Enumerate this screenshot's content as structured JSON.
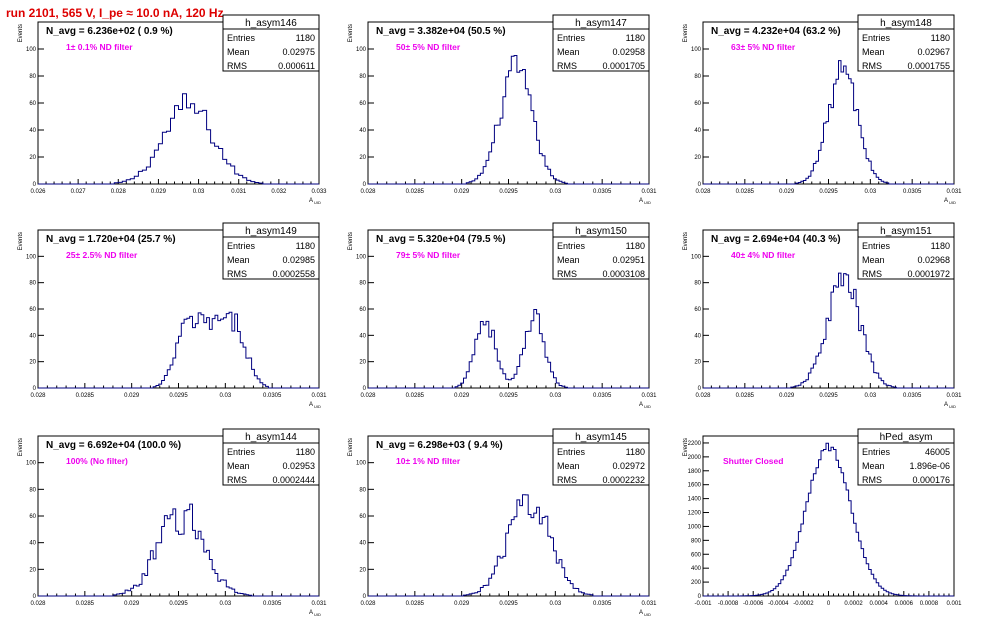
{
  "run_title": "run 2101,   565 V, I_pe ≈ 10.0 nA, 120 Hz",
  "colors": {
    "run_title": "#dd0000",
    "annotation": "#ee00ee",
    "histogram": "#000080",
    "frame": "#000000"
  },
  "chart_data": [
    {
      "type": "histogram",
      "hist_name": "h_asym146",
      "stats": {
        "entries": "1180",
        "mean": "0.02975",
        "rms": "0.000611"
      },
      "title": "N_avg = 6.236e+02 ( 0.9 %)",
      "annotation": "1± 0.1% ND filter",
      "ylabel": "Events",
      "xlabel": "A",
      "xlabel_sub": "UID",
      "xlim": [
        0.026,
        0.033
      ],
      "ylim": [
        0,
        120
      ],
      "xticks": [
        0.026,
        0.027,
        0.028,
        0.029,
        0.03,
        0.031,
        0.032,
        0.033
      ],
      "xtick_labels": [
        "0.026",
        "0.027",
        "0.028",
        "0.029",
        "0.03",
        "0.031",
        "0.032",
        "0.033"
      ],
      "yticks": [
        0,
        20,
        40,
        60,
        80,
        100
      ],
      "shape": {
        "kind": "gauss",
        "center": 0.02975,
        "sigma": 0.000611,
        "peak": 58,
        "bin_width": 0.0001,
        "noise": 0.18
      }
    },
    {
      "type": "histogram",
      "hist_name": "h_asym147",
      "stats": {
        "entries": "1180",
        "mean": "0.02958",
        "rms": "0.0001705"
      },
      "title": "N_avg = 3.382e+04 (50.5 %)",
      "annotation": "50± 5% ND filter",
      "ylabel": "Events",
      "xlabel": "A",
      "xlabel_sub": "UID",
      "xlim": [
        0.028,
        0.031
      ],
      "ylim": [
        0,
        120
      ],
      "xticks": [
        0.028,
        0.0285,
        0.029,
        0.0295,
        0.03,
        0.0305,
        0.031
      ],
      "xtick_labels": [
        "0.028",
        "0.0285",
        "0.029",
        "0.0295",
        "0.03",
        "0.0305",
        "0.031"
      ],
      "yticks": [
        0,
        20,
        40,
        60,
        80,
        100
      ],
      "shape": {
        "kind": "gauss",
        "center": 0.02958,
        "sigma": 0.0001705,
        "peak": 85,
        "bin_width": 3e-05,
        "noise": 0.14
      }
    },
    {
      "type": "histogram",
      "hist_name": "h_asym148",
      "stats": {
        "entries": "1180",
        "mean": "0.02967",
        "rms": "0.0001755"
      },
      "title": "N_avg = 4.232e+04 (63.2 %)",
      "annotation": "63± 5% ND filter",
      "ylabel": "Events",
      "xlabel": "A",
      "xlabel_sub": "UID",
      "xlim": [
        0.028,
        0.031
      ],
      "ylim": [
        0,
        120
      ],
      "xticks": [
        0.028,
        0.0285,
        0.029,
        0.0295,
        0.03,
        0.0305,
        0.031
      ],
      "xtick_labels": [
        "0.028",
        "0.0285",
        "0.029",
        "0.0295",
        "0.03",
        "0.0305",
        "0.031"
      ],
      "yticks": [
        0,
        20,
        40,
        60,
        80,
        100
      ],
      "shape": {
        "kind": "gauss",
        "center": 0.02967,
        "sigma": 0.0001755,
        "peak": 84,
        "bin_width": 3e-05,
        "noise": 0.14
      }
    },
    {
      "type": "histogram",
      "hist_name": "h_asym149",
      "stats": {
        "entries": "1180",
        "mean": "0.02985",
        "rms": "0.0002558"
      },
      "title": "N_avg = 1.720e+04 (25.7 %)",
      "annotation": "25± 2.5% ND filter",
      "ylabel": "Events",
      "xlabel": "A",
      "xlabel_sub": "UID",
      "xlim": [
        0.028,
        0.031
      ],
      "ylim": [
        0,
        120
      ],
      "xticks": [
        0.028,
        0.0285,
        0.029,
        0.0295,
        0.03,
        0.0305,
        0.031
      ],
      "xtick_labels": [
        "0.028",
        "0.0285",
        "0.029",
        "0.0295",
        "0.03",
        "0.0305",
        "0.031"
      ],
      "yticks": [
        0,
        20,
        40,
        60,
        80,
        100
      ],
      "shape": {
        "kind": "flat",
        "center": 0.02985,
        "sigma": 0.0002558,
        "peak": 50,
        "bin_width": 3e-05,
        "noise": 0.16
      }
    },
    {
      "type": "histogram",
      "hist_name": "h_asym150",
      "stats": {
        "entries": "1180",
        "mean": "0.02951",
        "rms": "0.0003108"
      },
      "title": "N_avg = 5.320e+04 (79.5 %)",
      "annotation": "79± 5% ND filter",
      "ylabel": "Events",
      "xlabel": "A",
      "xlabel_sub": "UID",
      "xlim": [
        0.028,
        0.031
      ],
      "ylim": [
        0,
        120
      ],
      "xticks": [
        0.028,
        0.0285,
        0.029,
        0.0295,
        0.03,
        0.0305,
        0.031
      ],
      "xtick_labels": [
        "0.028",
        "0.0285",
        "0.029",
        "0.0295",
        "0.03",
        "0.0305",
        "0.031"
      ],
      "yticks": [
        0,
        20,
        40,
        60,
        80,
        100
      ],
      "shape": {
        "kind": "double",
        "center": 0.02951,
        "c1": 0.02925,
        "c2": 0.02978,
        "sigma": 0.00011,
        "peak": 52,
        "bin_width": 3e-05,
        "noise": 0.16
      }
    },
    {
      "type": "histogram",
      "hist_name": "h_asym151",
      "stats": {
        "entries": "1180",
        "mean": "0.02968",
        "rms": "0.0001972"
      },
      "title": "N_avg = 2.694e+04 (40.3 %)",
      "annotation": "40± 4% ND filter",
      "ylabel": "Events",
      "xlabel": "A",
      "xlabel_sub": "UID",
      "xlim": [
        0.028,
        0.031
      ],
      "ylim": [
        0,
        120
      ],
      "xticks": [
        0.028,
        0.0285,
        0.029,
        0.0295,
        0.03,
        0.0305,
        0.031
      ],
      "xtick_labels": [
        "0.028",
        "0.0285",
        "0.029",
        "0.0295",
        "0.03",
        "0.0305",
        "0.031"
      ],
      "yticks": [
        0,
        20,
        40,
        60,
        80,
        100
      ],
      "shape": {
        "kind": "gauss",
        "center": 0.02968,
        "sigma": 0.0001972,
        "peak": 82,
        "bin_width": 3e-05,
        "noise": 0.16
      }
    },
    {
      "type": "histogram",
      "hist_name": "h_asym144",
      "stats": {
        "entries": "1180",
        "mean": "0.02953",
        "rms": "0.0002444"
      },
      "title": "N_avg = 6.692e+04 (100.0 %)",
      "annotation": "100% (No filter)",
      "ylabel": "Events",
      "xlabel": "A",
      "xlabel_sub": "UID",
      "xlim": [
        0.028,
        0.031
      ],
      "ylim": [
        0,
        120
      ],
      "xticks": [
        0.028,
        0.0285,
        0.029,
        0.0295,
        0.03,
        0.0305,
        0.031
      ],
      "xtick_labels": [
        "0.028",
        "0.0285",
        "0.029",
        "0.0295",
        "0.03",
        "0.0305",
        "0.031"
      ],
      "yticks": [
        0,
        20,
        40,
        60,
        80,
        100
      ],
      "shape": {
        "kind": "gauss",
        "center": 0.02953,
        "sigma": 0.0002444,
        "peak": 60,
        "bin_width": 3e-05,
        "noise": 0.3
      }
    },
    {
      "type": "histogram",
      "hist_name": "h_asym145",
      "stats": {
        "entries": "1180",
        "mean": "0.02972",
        "rms": "0.0002232"
      },
      "title": "N_avg = 6.298e+03 ( 9.4 %)",
      "annotation": "10± 1% ND filter",
      "ylabel": "Events",
      "xlabel": "A",
      "xlabel_sub": "UID",
      "xlim": [
        0.028,
        0.031
      ],
      "ylim": [
        0,
        120
      ],
      "xticks": [
        0.028,
        0.0285,
        0.029,
        0.0295,
        0.03,
        0.0305,
        0.031
      ],
      "xtick_labels": [
        "0.028",
        "0.0285",
        "0.029",
        "0.0295",
        "0.03",
        "0.0305",
        "0.031"
      ],
      "yticks": [
        0,
        20,
        40,
        60,
        80,
        100
      ],
      "shape": {
        "kind": "gauss",
        "center": 0.02972,
        "sigma": 0.0002232,
        "peak": 72,
        "bin_width": 3e-05,
        "noise": 0.2
      }
    },
    {
      "type": "histogram",
      "hist_name": "hPed_asym",
      "stats": {
        "entries": "46005",
        "mean": "1.896e-06",
        "rms": "0.000176"
      },
      "title": "",
      "annotation": "Shutter Closed",
      "ylabel": "Events",
      "xlabel": "",
      "xlabel_sub": "",
      "xlim": [
        -0.001,
        0.001
      ],
      "ylim": [
        0,
        2300
      ],
      "xticks": [
        -0.001,
        -0.0008,
        -0.0006,
        -0.0004,
        -0.0002,
        0,
        0.0002,
        0.0004,
        0.0006,
        0.0008,
        0.001
      ],
      "xtick_labels": [
        "-0.001",
        "-0.0008",
        "-0.0006",
        "-0.0004",
        "-0.0002",
        "0",
        "0.0002",
        "0.0004",
        "0.0006",
        "0.0008",
        "0.001"
      ],
      "yticks": [
        0,
        200,
        400,
        600,
        800,
        1000,
        1200,
        1400,
        1600,
        1800,
        2000,
        2200
      ],
      "shape": {
        "kind": "gauss",
        "center": 1.9e-06,
        "sigma": 0.000176,
        "peak": 2150,
        "bin_width": 2e-05,
        "noise": 0.03
      }
    }
  ]
}
